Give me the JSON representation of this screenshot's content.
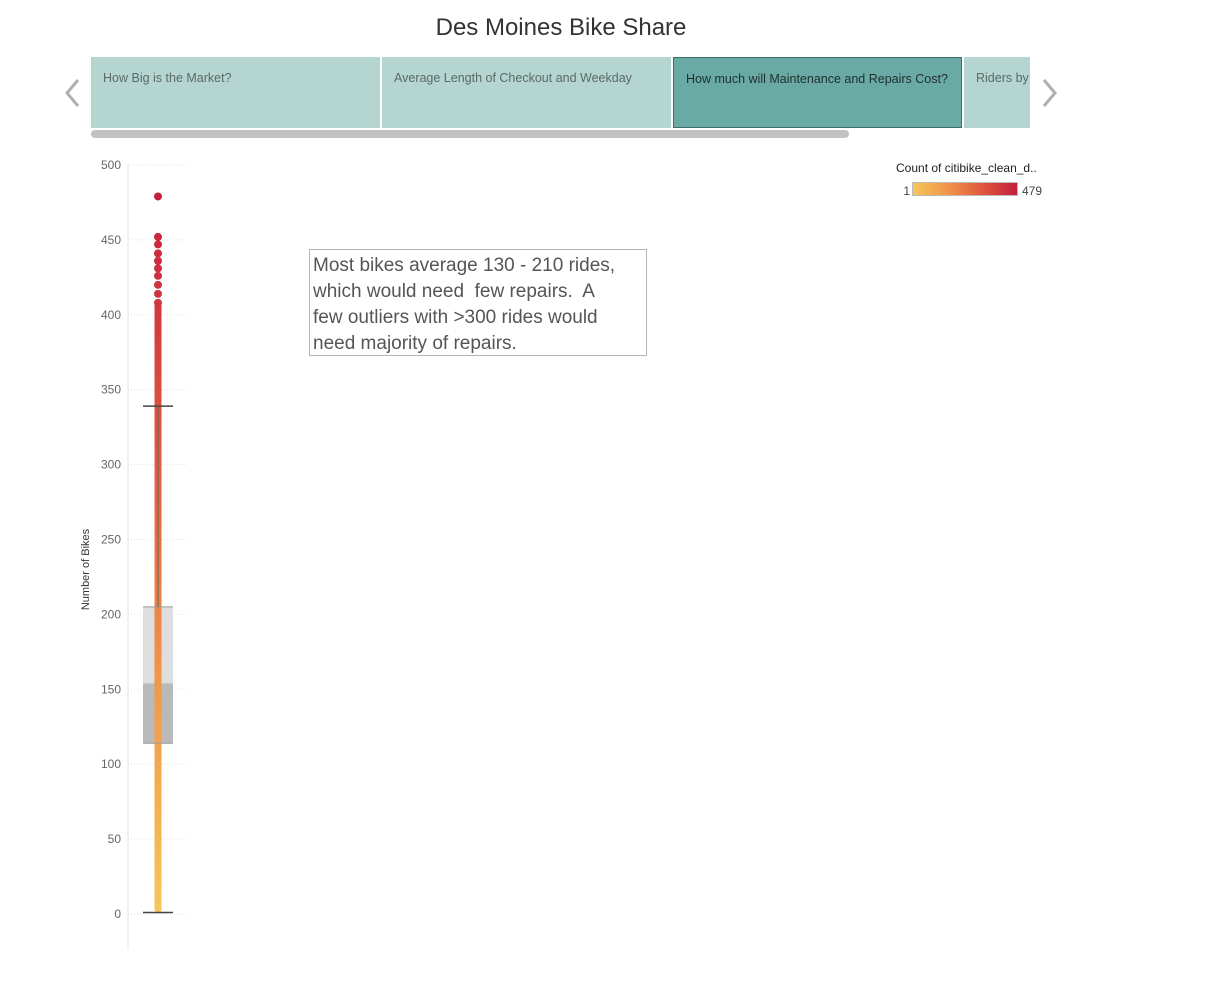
{
  "page": {
    "title": "Des Moines Bike Share"
  },
  "story_tabs": [
    {
      "label": "How Big is the Market?",
      "active": false
    },
    {
      "label": "Average Length of Checkout and Weekday",
      "active": false
    },
    {
      "label": "How much will Maintenance and Repairs Cost?",
      "active": true
    },
    {
      "label": "Riders by",
      "active": false
    }
  ],
  "nav": {
    "prev_icon": "chevron-left-icon",
    "next_icon": "chevron-right-icon"
  },
  "legend": {
    "title": "Count of citibike_clean_d..",
    "min_label": "1",
    "max_label": "479",
    "colors": [
      "#f7c65a",
      "#f0954a",
      "#e0563e",
      "#c41f3e"
    ]
  },
  "annotation": {
    "lines": [
      "Most bikes average 130 - 210 rides,",
      "which would need  few repairs.  A",
      "few outliers with >300 rides would",
      "need majority of repairs."
    ]
  },
  "chart_data": {
    "type": "boxplot",
    "ylabel": "Number of Bikes",
    "ylim": [
      0,
      500
    ],
    "y_ticks": [
      "500",
      "450",
      "400",
      "350",
      "300",
      "250",
      "200",
      "150",
      "100",
      "50",
      "0"
    ],
    "y_tick_values": [
      500,
      450,
      400,
      350,
      300,
      250,
      200,
      150,
      100,
      50,
      0
    ],
    "color_range": [
      1,
      479
    ],
    "box": {
      "whisker_low": 1,
      "q1": 114,
      "median": 154,
      "q3": 205,
      "whisker_high": 339
    },
    "outliers": [
      479,
      452,
      447,
      441,
      436,
      431,
      426,
      420,
      414,
      408
    ],
    "grid": true
  }
}
